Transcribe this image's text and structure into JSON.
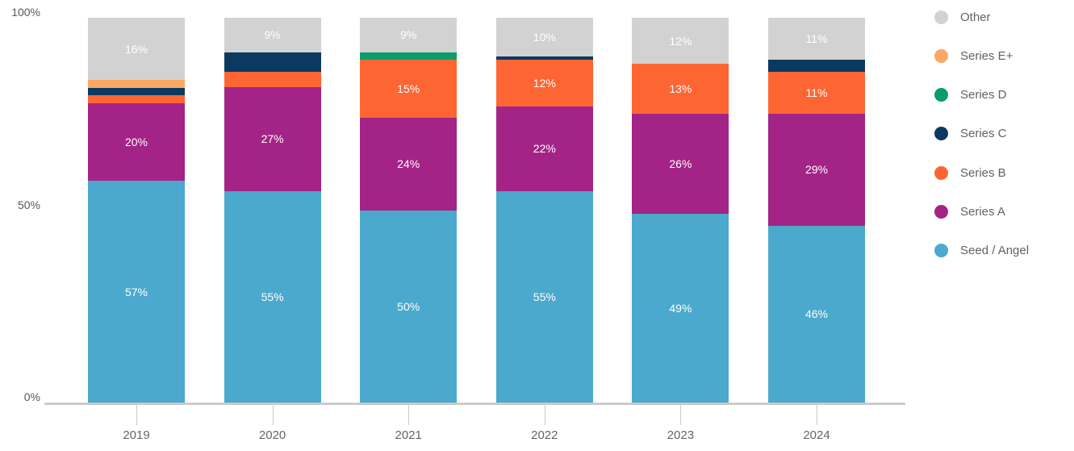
{
  "chart_data": {
    "type": "bar",
    "variant": "stacked-100-percent",
    "unit": "%",
    "categories": [
      "2019",
      "2020",
      "2021",
      "2022",
      "2023",
      "2024"
    ],
    "series": [
      {
        "name": "Seed / Angel",
        "color": "#4BA9CD",
        "values": [
          57,
          55,
          50,
          55,
          49,
          46
        ]
      },
      {
        "name": "Series A",
        "color": "#A32486",
        "values": [
          20,
          27,
          24,
          22,
          26,
          29
        ]
      },
      {
        "name": "Series B",
        "color": "#FD6633",
        "values": [
          2,
          4,
          15,
          12,
          13,
          11
        ]
      },
      {
        "name": "Series C",
        "color": "#0B3960",
        "values": [
          2,
          5,
          0,
          1,
          0,
          3
        ]
      },
      {
        "name": "Series D",
        "color": "#0A9D6C",
        "values": [
          0,
          0,
          2,
          0,
          0,
          0
        ]
      },
      {
        "name": "Series E+",
        "color": "#F9A963",
        "values": [
          2,
          0,
          0,
          0,
          0,
          0
        ]
      },
      {
        "name": "Other",
        "color": "#D2D2D2",
        "values": [
          16,
          9,
          9,
          10,
          12,
          11
        ]
      }
    ],
    "y_axis": {
      "min": 0,
      "max": 100,
      "ticks": [
        {
          "label": "0%",
          "value": 0
        },
        {
          "label": "50%",
          "value": 50
        },
        {
          "label": "100%",
          "value": 100
        }
      ]
    },
    "legend": {
      "position": "right",
      "order_top_to_bottom": [
        "Other",
        "Series E+",
        "Series D",
        "Series C",
        "Series B",
        "Series A",
        "Seed / Angel"
      ]
    },
    "value_label_suffix": "%",
    "label_min_value_shown": 9,
    "grid": false
  }
}
